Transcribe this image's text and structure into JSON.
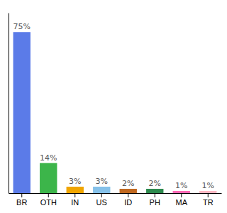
{
  "chart_data": {
    "type": "bar",
    "categories": [
      "BR",
      "OTH",
      "IN",
      "US",
      "ID",
      "PH",
      "MA",
      "TR"
    ],
    "values": [
      75,
      14,
      3,
      3,
      2,
      2,
      1,
      1
    ],
    "value_labels": [
      "75%",
      "14%",
      "3%",
      "3%",
      "2%",
      "2%",
      "1%",
      "1%"
    ],
    "colors": [
      "#5b7be8",
      "#3cb54a",
      "#f0a500",
      "#85c1e9",
      "#c06820",
      "#2d8a4e",
      "#ff69b4",
      "#ffb6c1"
    ],
    "ylim": [
      0,
      84
    ],
    "data_labels": true,
    "tick_labels": "x",
    "grid": false
  }
}
